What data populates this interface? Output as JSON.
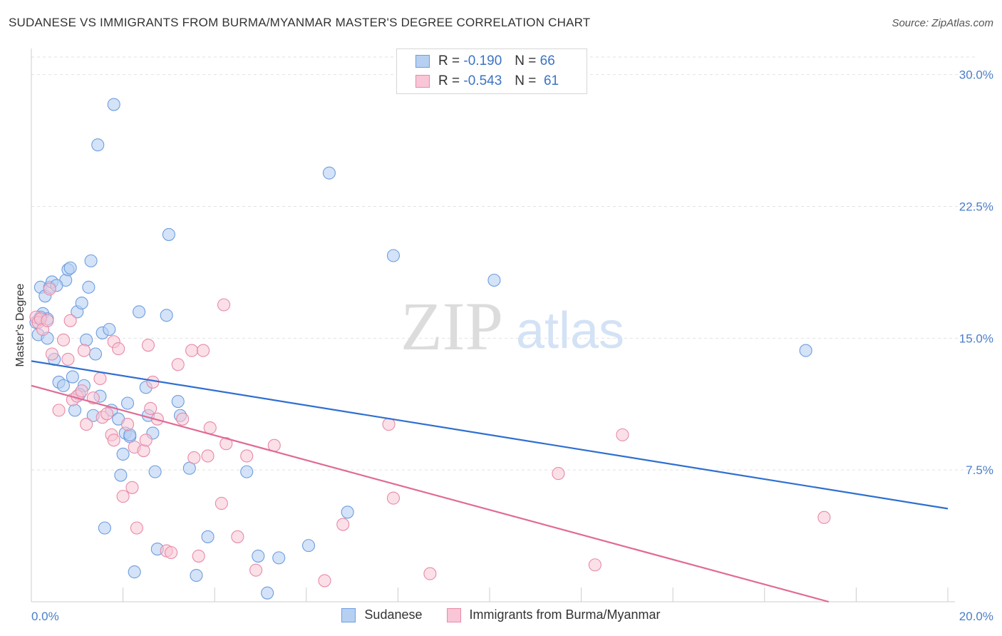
{
  "header": {
    "title": "SUDANESE VS IMMIGRANTS FROM BURMA/MYANMAR MASTER'S DEGREE CORRELATION CHART",
    "source": "Source: ZipAtlas.com"
  },
  "watermark": {
    "zip": "ZIP",
    "atlas": "atlas"
  },
  "legend_top": [
    {
      "r_label": "R = ",
      "r_value": "-0.190",
      "n_label": "N = ",
      "n_value": "66"
    },
    {
      "r_label": "R = ",
      "r_value": "-0.543",
      "n_label": "N = ",
      "n_value": "61"
    }
  ],
  "colors": {
    "sudanese_fill": "#b7d0f2",
    "sudanese_stroke": "#6d9de0",
    "sudanese_line": "#2f6fd0",
    "burma_fill": "#f8c6d6",
    "burma_stroke": "#e88aa8",
    "burma_line": "#e06a95",
    "tick_text": "#4a7fc8",
    "grid": "#e2e2e2"
  },
  "chart_data": {
    "type": "scatter",
    "title": "SUDANESE VS IMMIGRANTS FROM BURMA/MYANMAR MASTER'S DEGREE CORRELATION CHART",
    "xlabel": "",
    "ylabel": "Master's Degree",
    "xlim": [
      0,
      20
    ],
    "ylim": [
      0,
      31
    ],
    "x_tick_labels": [
      "0.0%",
      "20.0%"
    ],
    "y_ticks": [
      7.5,
      15.0,
      22.5,
      30.0
    ],
    "y_tick_labels": [
      "7.5%",
      "15.0%",
      "22.5%",
      "30.0%"
    ],
    "grid": "horizontal dashed",
    "legend_placement": "bottom",
    "series": [
      {
        "name": "Sudanese",
        "r": -0.19,
        "n": 66,
        "trend": {
          "x": [
            0,
            20
          ],
          "y": [
            13.7,
            5.3
          ]
        },
        "points": [
          [
            0.1,
            15.9
          ],
          [
            0.15,
            15.2
          ],
          [
            0.2,
            17.9
          ],
          [
            0.25,
            16.4
          ],
          [
            0.3,
            17.4
          ],
          [
            0.35,
            16.1
          ],
          [
            0.4,
            17.9
          ],
          [
            0.45,
            18.2
          ],
          [
            0.5,
            13.8
          ],
          [
            0.6,
            12.5
          ],
          [
            0.7,
            12.3
          ],
          [
            0.75,
            18.3
          ],
          [
            0.8,
            18.9
          ],
          [
            0.85,
            19.0
          ],
          [
            0.9,
            12.8
          ],
          [
            0.95,
            10.9
          ],
          [
            1.0,
            16.5
          ],
          [
            1.1,
            17.0
          ],
          [
            1.15,
            12.3
          ],
          [
            1.2,
            14.9
          ],
          [
            1.25,
            17.9
          ],
          [
            1.3,
            19.4
          ],
          [
            1.35,
            10.6
          ],
          [
            1.4,
            14.1
          ],
          [
            1.45,
            26.0
          ],
          [
            1.5,
            11.7
          ],
          [
            1.55,
            15.3
          ],
          [
            1.6,
            4.2
          ],
          [
            1.7,
            15.5
          ],
          [
            1.75,
            10.9
          ],
          [
            1.8,
            28.3
          ],
          [
            1.9,
            10.4
          ],
          [
            1.95,
            7.2
          ],
          [
            2.0,
            8.4
          ],
          [
            2.05,
            9.6
          ],
          [
            2.1,
            11.3
          ],
          [
            2.15,
            9.4
          ],
          [
            2.25,
            1.7
          ],
          [
            2.35,
            16.5
          ],
          [
            2.5,
            12.2
          ],
          [
            2.55,
            10.6
          ],
          [
            2.65,
            9.6
          ],
          [
            2.7,
            7.4
          ],
          [
            2.75,
            3.0
          ],
          [
            2.95,
            16.3
          ],
          [
            3.0,
            20.9
          ],
          [
            3.2,
            11.4
          ],
          [
            3.25,
            10.6
          ],
          [
            3.45,
            7.6
          ],
          [
            3.6,
            1.5
          ],
          [
            3.85,
            3.7
          ],
          [
            4.7,
            7.4
          ],
          [
            4.95,
            2.6
          ],
          [
            5.15,
            0.5
          ],
          [
            5.4,
            2.5
          ],
          [
            6.05,
            3.2
          ],
          [
            6.5,
            24.4
          ],
          [
            6.9,
            5.1
          ],
          [
            7.9,
            19.7
          ],
          [
            10.1,
            18.3
          ],
          [
            16.9,
            14.3
          ],
          [
            0.55,
            18.0
          ],
          [
            0.2,
            16.2
          ],
          [
            0.35,
            15.0
          ],
          [
            1.05,
            11.8
          ],
          [
            2.15,
            9.5
          ]
        ]
      },
      {
        "name": "Immigrants from Burma/Myanmar",
        "r": -0.543,
        "n": 61,
        "trend": {
          "x": [
            0,
            17.4
          ],
          "y": [
            12.3,
            0
          ]
        },
        "points": [
          [
            0.1,
            16.2
          ],
          [
            0.15,
            15.9
          ],
          [
            0.2,
            16.1
          ],
          [
            0.25,
            15.5
          ],
          [
            0.35,
            16.0
          ],
          [
            0.4,
            17.8
          ],
          [
            0.45,
            14.1
          ],
          [
            0.6,
            10.9
          ],
          [
            0.7,
            14.9
          ],
          [
            0.8,
            13.8
          ],
          [
            0.85,
            16.0
          ],
          [
            0.9,
            11.5
          ],
          [
            1.0,
            11.7
          ],
          [
            1.1,
            12.0
          ],
          [
            1.15,
            14.3
          ],
          [
            1.2,
            10.1
          ],
          [
            1.35,
            11.6
          ],
          [
            1.5,
            12.7
          ],
          [
            1.55,
            10.5
          ],
          [
            1.65,
            10.7
          ],
          [
            1.75,
            9.5
          ],
          [
            1.8,
            9.2
          ],
          [
            1.8,
            14.8
          ],
          [
            1.9,
            14.4
          ],
          [
            2.0,
            6.0
          ],
          [
            2.1,
            10.1
          ],
          [
            2.2,
            6.5
          ],
          [
            2.25,
            8.8
          ],
          [
            2.3,
            4.2
          ],
          [
            2.45,
            8.6
          ],
          [
            2.5,
            9.2
          ],
          [
            2.55,
            14.6
          ],
          [
            2.6,
            11.0
          ],
          [
            2.65,
            12.5
          ],
          [
            2.75,
            10.4
          ],
          [
            2.95,
            2.9
          ],
          [
            3.05,
            2.8
          ],
          [
            3.2,
            13.5
          ],
          [
            3.3,
            10.4
          ],
          [
            3.5,
            14.3
          ],
          [
            3.55,
            8.2
          ],
          [
            3.65,
            2.6
          ],
          [
            3.75,
            14.3
          ],
          [
            3.85,
            8.3
          ],
          [
            3.9,
            9.9
          ],
          [
            4.15,
            5.6
          ],
          [
            4.2,
            16.9
          ],
          [
            4.25,
            9.0
          ],
          [
            4.5,
            3.7
          ],
          [
            4.7,
            8.3
          ],
          [
            4.9,
            1.8
          ],
          [
            5.3,
            8.9
          ],
          [
            6.4,
            1.2
          ],
          [
            6.8,
            4.4
          ],
          [
            7.8,
            10.1
          ],
          [
            7.9,
            5.9
          ],
          [
            8.7,
            1.6
          ],
          [
            11.5,
            7.3
          ],
          [
            12.3,
            2.1
          ],
          [
            12.9,
            9.5
          ],
          [
            17.3,
            4.8
          ]
        ]
      }
    ]
  },
  "bottom_legend": [
    {
      "label": "Sudanese"
    },
    {
      "label": "Immigrants from Burma/Myanmar"
    }
  ]
}
